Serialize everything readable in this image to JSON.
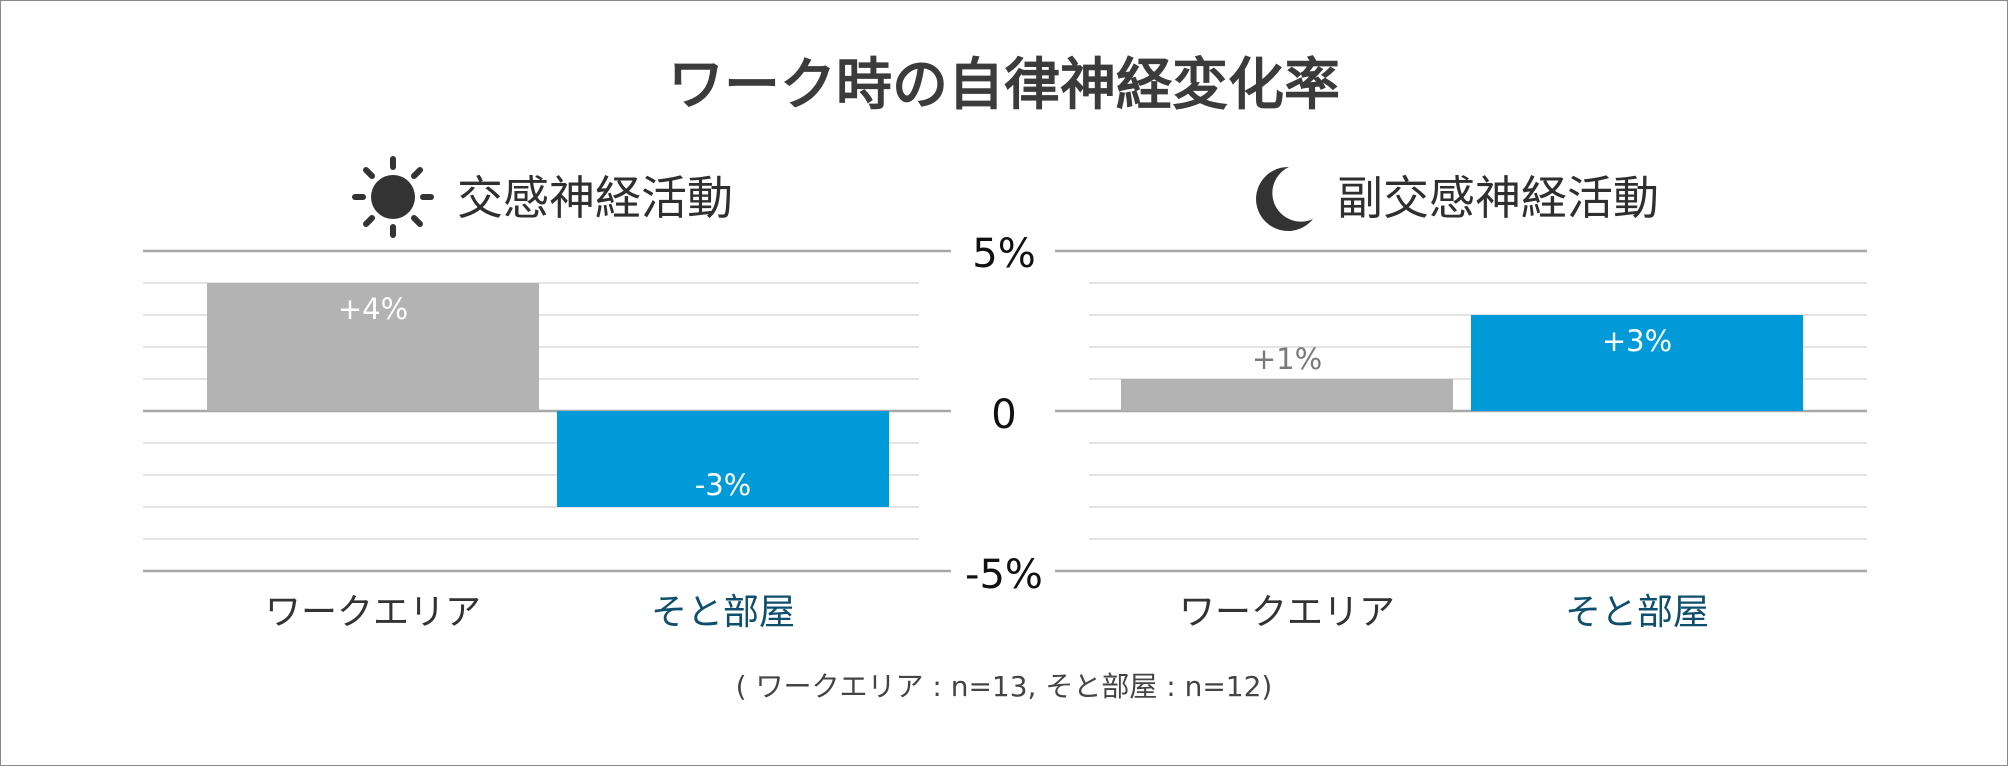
{
  "title": "ワーク時の自律神経変化率",
  "note": "( ワークエリア : n=13, そと部屋 : n=12)",
  "colors": {
    "gray_bar": "#b3b3b3",
    "blue_bar": "#009ad8",
    "blue_text": "#0f4f6e",
    "gridline": "#dcdcdc",
    "axis_line": "#a8a8a8",
    "icon": "#333333"
  },
  "icons": {
    "left": "sun-icon",
    "right": "moon-icon"
  },
  "axis": {
    "top_label": "5%",
    "zero_label": "0",
    "bottom_label": "-5%"
  },
  "chart_data": [
    {
      "type": "bar",
      "title": "交感神経活動",
      "categories": [
        "ワークエリア",
        "そと部屋"
      ],
      "values": [
        4,
        -3
      ],
      "value_labels": [
        "+4%",
        "-3%"
      ],
      "ylim": [
        -5,
        5
      ],
      "grid": true
    },
    {
      "type": "bar",
      "title": "副交感神経活動",
      "categories": [
        "ワークエリア",
        "そと部屋"
      ],
      "values": [
        1,
        3
      ],
      "value_labels": [
        "+1%",
        "+3%"
      ],
      "ylim": [
        -5,
        5
      ],
      "grid": true
    }
  ]
}
